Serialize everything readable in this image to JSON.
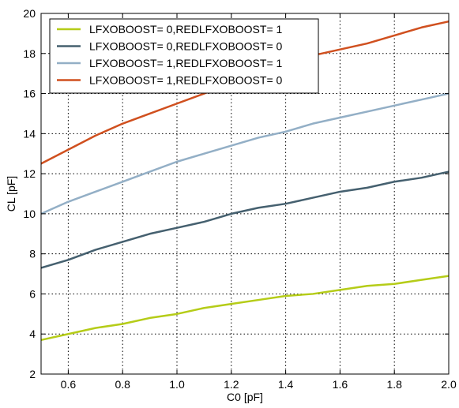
{
  "chart_data": {
    "type": "line",
    "title": "",
    "xlabel": "C0 [pF]",
    "ylabel": "CL [pF]",
    "xlim": [
      0.5,
      2.0
    ],
    "ylim": [
      2,
      20
    ],
    "xticks": [
      "0.6",
      "0.8",
      "1.0",
      "1.2",
      "1.4",
      "1.6",
      "1.8",
      "2.0"
    ],
    "yticks": [
      "2",
      "4",
      "6",
      "8",
      "10",
      "12",
      "14",
      "16",
      "18",
      "20"
    ],
    "grid": true,
    "legend_position": "top-left",
    "x": [
      0.5,
      0.6,
      0.7,
      0.8,
      0.9,
      1.0,
      1.1,
      1.2,
      1.3,
      1.4,
      1.5,
      1.6,
      1.7,
      1.8,
      1.9,
      2.0
    ],
    "series": [
      {
        "name": "LFXOBOOST= 0,REDLFXOBOOST= 1",
        "color": "#b5cc18",
        "values": [
          3.7,
          4.0,
          4.3,
          4.5,
          4.8,
          5.0,
          5.3,
          5.5,
          5.7,
          5.9,
          6.0,
          6.2,
          6.4,
          6.5,
          6.7,
          6.9
        ]
      },
      {
        "name": "LFXOBOOST= 0,REDLFXOBOOST= 0",
        "color": "#45606f",
        "values": [
          7.3,
          7.7,
          8.2,
          8.6,
          9.0,
          9.3,
          9.6,
          10.0,
          10.3,
          10.5,
          10.8,
          11.1,
          11.3,
          11.6,
          11.8,
          12.1
        ]
      },
      {
        "name": "LFXOBOOST= 1,REDLFXOBOOST= 1",
        "color": "#93afc6",
        "values": [
          10.0,
          10.6,
          11.1,
          11.6,
          12.1,
          12.6,
          13.0,
          13.4,
          13.8,
          14.1,
          14.5,
          14.8,
          15.1,
          15.4,
          15.7,
          16.0
        ]
      },
      {
        "name": "LFXOBOOST= 1,REDLFXOBOOST= 0",
        "color": "#d0501f",
        "values": [
          12.5,
          13.2,
          13.9,
          14.5,
          15.0,
          15.5,
          16.0,
          16.5,
          17.0,
          17.5,
          17.9,
          18.2,
          18.5,
          18.9,
          19.3,
          19.6
        ]
      }
    ]
  }
}
